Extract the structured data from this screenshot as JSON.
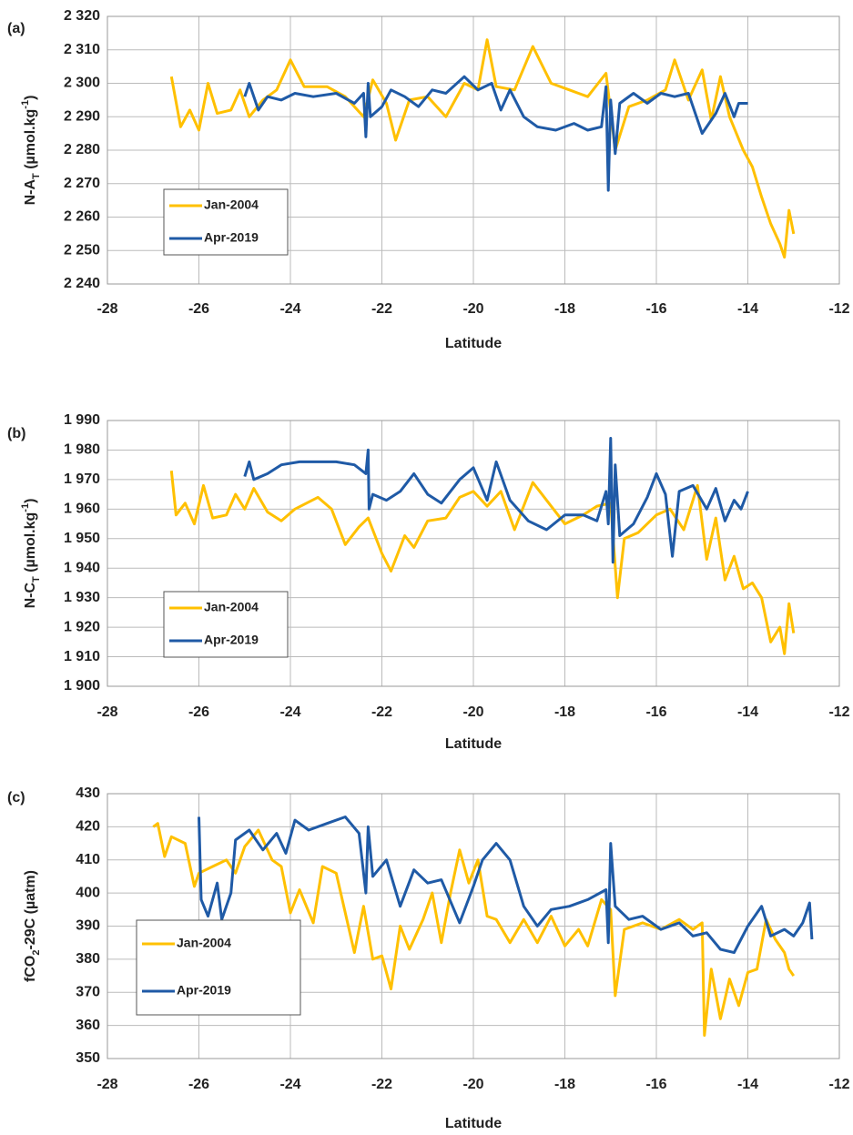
{
  "chart_data": [
    {
      "type": "line",
      "panel_label": "(a)",
      "xlabel": "Latitude",
      "ylabel": [
        "N-A",
        "T",
        " (µmol.kg",
        "-1",
        ")"
      ],
      "xlim": [
        -28,
        -12
      ],
      "xticks": [
        -28,
        -26,
        -24,
        -22,
        -20,
        -18,
        -16,
        -14,
        -12
      ],
      "ylim": [
        2240,
        2320
      ],
      "yticks": [
        {
          "value": 2240,
          "label": "2 240"
        },
        {
          "value": 2250,
          "label": "2 250"
        },
        {
          "value": 2260,
          "label": "2 260"
        },
        {
          "value": 2270,
          "label": "2 270"
        },
        {
          "value": 2280,
          "label": "2 280"
        },
        {
          "value": 2290,
          "label": "2 290"
        },
        {
          "value": 2300,
          "label": "2 300"
        },
        {
          "value": 2310,
          "label": "2 310"
        },
        {
          "value": 2320,
          "label": "2 320"
        }
      ],
      "grid": true,
      "legend": "lower left",
      "series": [
        {
          "name": "Jan-2004",
          "color": "#ffc000",
          "x": [
            -26.6,
            -26.4,
            -26.2,
            -26.0,
            -25.8,
            -25.6,
            -25.3,
            -25.1,
            -24.9,
            -24.6,
            -24.3,
            -24.0,
            -23.7,
            -23.2,
            -22.8,
            -22.4,
            -22.2,
            -21.9,
            -21.7,
            -21.4,
            -21.0,
            -20.6,
            -20.2,
            -19.9,
            -19.7,
            -19.5,
            -19.1,
            -18.7,
            -18.3,
            -17.9,
            -17.5,
            -17.1,
            -16.9,
            -16.6,
            -16.2,
            -15.8,
            -15.6,
            -15.3,
            -15.0,
            -14.8,
            -14.6,
            -14.4,
            -14.1,
            -13.9,
            -13.7,
            -13.5,
            -13.3,
            -13.2,
            -13.1,
            -13.0
          ],
          "values": [
            2302,
            2287,
            2292,
            2286,
            2300,
            2291,
            2292,
            2298,
            2290,
            2295,
            2298,
            2307,
            2299,
            2299,
            2296,
            2290,
            2301,
            2294,
            2283,
            2295,
            2296,
            2290,
            2300,
            2298,
            2313,
            2299,
            2298,
            2311,
            2300,
            2298,
            2296,
            2303,
            2280,
            2293,
            2295,
            2298,
            2307,
            2295,
            2304,
            2289,
            2302,
            2290,
            2280,
            2275,
            2266,
            2258,
            2252,
            2248,
            2262,
            2255
          ]
        },
        {
          "name": "Apr-2019",
          "color": "#1f5aa6",
          "x": [
            -25.0,
            -24.9,
            -24.7,
            -24.5,
            -24.2,
            -23.9,
            -23.5,
            -23.0,
            -22.6,
            -22.4,
            -22.35,
            -22.3,
            -22.25,
            -22.0,
            -21.8,
            -21.5,
            -21.2,
            -20.9,
            -20.6,
            -20.2,
            -19.9,
            -19.6,
            -19.4,
            -19.2,
            -18.9,
            -18.6,
            -18.2,
            -17.8,
            -17.5,
            -17.2,
            -17.1,
            -17.05,
            -17.0,
            -16.9,
            -16.8,
            -16.5,
            -16.2,
            -15.9,
            -15.6,
            -15.3,
            -15.0,
            -14.7,
            -14.5,
            -14.3,
            -14.2,
            -14.0
          ],
          "values": [
            2296,
            2300,
            2292,
            2296,
            2295,
            2297,
            2296,
            2297,
            2294,
            2297,
            2284,
            2300,
            2290,
            2293,
            2298,
            2296,
            2293,
            2298,
            2297,
            2302,
            2298,
            2300,
            2292,
            2298,
            2290,
            2287,
            2286,
            2288,
            2286,
            2287,
            2299,
            2268,
            2295,
            2279,
            2294,
            2297,
            2294,
            2297,
            2296,
            2297,
            2285,
            2291,
            2297,
            2290,
            2294,
            2294
          ]
        }
      ]
    },
    {
      "type": "line",
      "panel_label": "(b)",
      "xlabel": "Latitude",
      "ylabel": [
        "N-C",
        "T",
        " (µmol.kg",
        "-1",
        ")"
      ],
      "xlim": [
        -28,
        -12
      ],
      "xticks": [
        -28,
        -26,
        -24,
        -22,
        -20,
        -18,
        -16,
        -14,
        -12
      ],
      "ylim": [
        1900,
        1990
      ],
      "yticks": [
        {
          "value": 1900,
          "label": "1 900"
        },
        {
          "value": 1910,
          "label": "1 910"
        },
        {
          "value": 1920,
          "label": "1 920"
        },
        {
          "value": 1930,
          "label": "1 930"
        },
        {
          "value": 1940,
          "label": "1 940"
        },
        {
          "value": 1950,
          "label": "1 950"
        },
        {
          "value": 1960,
          "label": "1 960"
        },
        {
          "value": 1970,
          "label": "1 970"
        },
        {
          "value": 1980,
          "label": "1 980"
        },
        {
          "value": 1990,
          "label": "1 990"
        }
      ],
      "grid": true,
      "legend": "lower left",
      "series": [
        {
          "name": "Jan-2004",
          "color": "#ffc000",
          "x": [
            -26.6,
            -26.5,
            -26.3,
            -26.1,
            -25.9,
            -25.7,
            -25.4,
            -25.2,
            -25.0,
            -24.8,
            -24.5,
            -24.2,
            -23.9,
            -23.4,
            -23.1,
            -22.8,
            -22.5,
            -22.3,
            -22.0,
            -21.8,
            -21.5,
            -21.3,
            -21.0,
            -20.6,
            -20.3,
            -20.0,
            -19.7,
            -19.4,
            -19.1,
            -18.7,
            -18.3,
            -18.0,
            -17.6,
            -17.3,
            -17.0,
            -16.85,
            -16.7,
            -16.4,
            -16.0,
            -15.7,
            -15.4,
            -15.1,
            -14.9,
            -14.7,
            -14.5,
            -14.3,
            -14.1,
            -13.9,
            -13.7,
            -13.5,
            -13.3,
            -13.2,
            -13.1,
            -13.0
          ],
          "values": [
            1973,
            1958,
            1962,
            1955,
            1968,
            1957,
            1958,
            1965,
            1960,
            1967,
            1959,
            1956,
            1960,
            1964,
            1960,
            1948,
            1954,
            1957,
            1945,
            1939,
            1951,
            1947,
            1956,
            1957,
            1964,
            1966,
            1961,
            1966,
            1953,
            1969,
            1961,
            1955,
            1958,
            1961,
            1962,
            1930,
            1950,
            1952,
            1958,
            1960,
            1953,
            1968,
            1943,
            1957,
            1936,
            1944,
            1933,
            1935,
            1930,
            1915,
            1920,
            1911,
            1928,
            1918
          ]
        },
        {
          "name": "Apr-2019",
          "color": "#1f5aa6",
          "x": [
            -25.0,
            -24.9,
            -24.8,
            -24.5,
            -24.2,
            -23.8,
            -23.4,
            -23.0,
            -22.6,
            -22.35,
            -22.3,
            -22.28,
            -22.2,
            -21.9,
            -21.6,
            -21.3,
            -21.0,
            -20.7,
            -20.3,
            -20.0,
            -19.7,
            -19.5,
            -19.2,
            -18.8,
            -18.4,
            -18.0,
            -17.6,
            -17.3,
            -17.1,
            -17.05,
            -17.0,
            -16.95,
            -16.9,
            -16.8,
            -16.5,
            -16.2,
            -16.0,
            -15.8,
            -15.65,
            -15.5,
            -15.2,
            -14.9,
            -14.7,
            -14.5,
            -14.3,
            -14.15,
            -14.0
          ],
          "values": [
            1971,
            1976,
            1970,
            1972,
            1975,
            1976,
            1976,
            1976,
            1975,
            1972,
            1980,
            1960,
            1965,
            1963,
            1966,
            1972,
            1965,
            1962,
            1970,
            1974,
            1963,
            1976,
            1963,
            1956,
            1953,
            1958,
            1958,
            1956,
            1966,
            1955,
            1984,
            1942,
            1975,
            1951,
            1955,
            1964,
            1972,
            1965,
            1944,
            1966,
            1968,
            1960,
            1967,
            1956,
            1963,
            1960,
            1966
          ]
        }
      ]
    },
    {
      "type": "line",
      "panel_label": "(c)",
      "xlabel": "Latitude",
      "ylabel": [
        "fCO",
        "2",
        "-29C (µatm)"
      ],
      "xlim": [
        -28,
        -12
      ],
      "xticks": [
        -28,
        -26,
        -24,
        -22,
        -20,
        -18,
        -16,
        -14,
        -12
      ],
      "ylim": [
        350,
        430
      ],
      "yticks": [
        350,
        360,
        370,
        380,
        390,
        400,
        410,
        420,
        430
      ],
      "grid": true,
      "legend": "lower left",
      "series": [
        {
          "name": "Jan-2004",
          "color": "#ffc000",
          "x": [
            -27.0,
            -26.9,
            -26.75,
            -26.6,
            -26.3,
            -26.1,
            -26.0,
            -25.7,
            -25.4,
            -25.2,
            -25.0,
            -24.7,
            -24.4,
            -24.2,
            -24.0,
            -23.8,
            -23.5,
            -23.3,
            -23.0,
            -22.7,
            -22.6,
            -22.4,
            -22.2,
            -22.0,
            -21.8,
            -21.6,
            -21.4,
            -21.1,
            -20.9,
            -20.7,
            -20.5,
            -20.3,
            -20.1,
            -19.9,
            -19.7,
            -19.5,
            -19.2,
            -18.9,
            -18.6,
            -18.3,
            -18.0,
            -17.7,
            -17.5,
            -17.2,
            -17.0,
            -16.9,
            -16.7,
            -16.3,
            -15.9,
            -15.5,
            -15.2,
            -15.0,
            -14.95,
            -14.8,
            -14.6,
            -14.4,
            -14.2,
            -14.0,
            -13.8,
            -13.6,
            -13.4,
            -13.2,
            -13.1,
            -13.0
          ],
          "values": [
            420,
            421,
            411,
            417,
            415,
            402,
            406,
            408,
            410,
            406,
            414,
            419,
            410,
            408,
            394,
            401,
            391,
            408,
            406,
            388,
            382,
            396,
            380,
            381,
            371,
            390,
            383,
            392,
            400,
            385,
            400,
            413,
            403,
            410,
            393,
            392,
            385,
            392,
            385,
            393,
            384,
            389,
            384,
            398,
            395,
            369,
            389,
            391,
            389,
            392,
            389,
            391,
            357,
            377,
            362,
            374,
            366,
            376,
            377,
            392,
            386,
            382,
            377,
            375
          ]
        },
        {
          "name": "Apr-2019",
          "color": "#1f5aa6",
          "x": [
            -26.0,
            -25.95,
            -25.8,
            -25.6,
            -25.5,
            -25.3,
            -25.2,
            -24.9,
            -24.6,
            -24.3,
            -24.1,
            -23.9,
            -23.6,
            -23.2,
            -22.8,
            -22.5,
            -22.35,
            -22.3,
            -22.2,
            -21.9,
            -21.6,
            -21.3,
            -21.0,
            -20.7,
            -20.3,
            -20.0,
            -19.8,
            -19.5,
            -19.2,
            -18.9,
            -18.6,
            -18.3,
            -17.9,
            -17.5,
            -17.1,
            -17.05,
            -17.0,
            -16.9,
            -16.6,
            -16.3,
            -15.9,
            -15.5,
            -15.2,
            -14.9,
            -14.6,
            -14.3,
            -14.0,
            -13.7,
            -13.5,
            -13.2,
            -13.0,
            -12.8,
            -12.65,
            -12.6
          ],
          "values": [
            423,
            398,
            393,
            403,
            392,
            400,
            416,
            419,
            413,
            418,
            412,
            422,
            419,
            421,
            423,
            418,
            400,
            420,
            405,
            410,
            396,
            407,
            403,
            404,
            391,
            402,
            410,
            415,
            410,
            396,
            390,
            395,
            396,
            398,
            401,
            385,
            415,
            396,
            392,
            393,
            389,
            391,
            387,
            388,
            383,
            382,
            390,
            396,
            387,
            389,
            387,
            391,
            397,
            386
          ]
        }
      ]
    }
  ]
}
